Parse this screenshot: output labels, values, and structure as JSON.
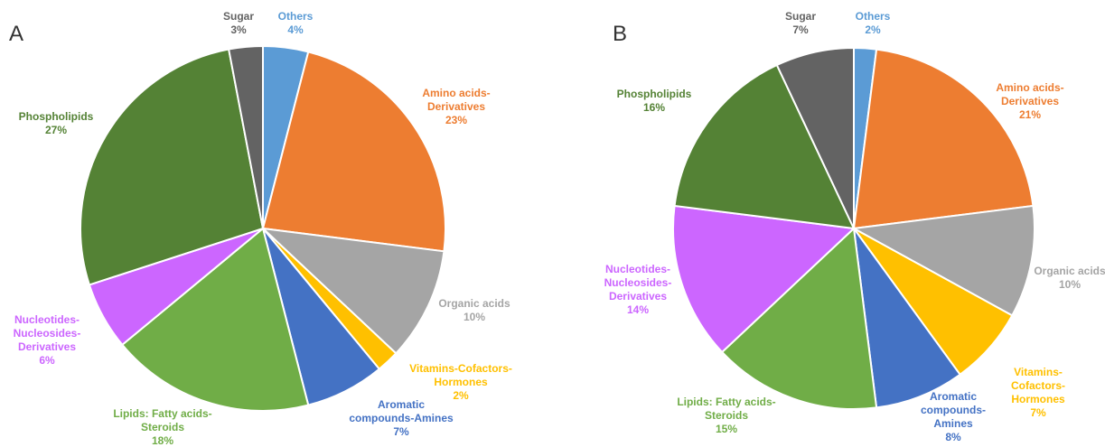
{
  "chart_data": [
    {
      "type": "pie",
      "panel_label": "A",
      "slices": [
        {
          "label": "Others",
          "value": 4,
          "text": "4%",
          "color": "#5b9bd5"
        },
        {
          "label": "Amino acids-Derivatives",
          "value": 23,
          "text": "23%",
          "color": "#ed7d31"
        },
        {
          "label": "Organic acids",
          "value": 10,
          "text": "10%",
          "color": "#a5a5a5"
        },
        {
          "label": "Vitamins-Cofactors-Hormones",
          "value": 2,
          "text": "2%",
          "color": "#ffc000"
        },
        {
          "label": "Aromatic compounds-Amines",
          "value": 7,
          "text": "7%",
          "color": "#4472c4"
        },
        {
          "label": "Lipids: Fatty acids-Steroids",
          "value": 18,
          "text": "18%",
          "color": "#70ad47"
        },
        {
          "label": "Nucleotides-Nucleosides-Derivatives",
          "value": 6,
          "text": "6%",
          "color": "#cc66ff"
        },
        {
          "label": "Phospholipids",
          "value": 27,
          "text": "27%",
          "color": "#548235"
        },
        {
          "label": "Sugar",
          "value": 3,
          "text": "3%",
          "color": "#636363"
        }
      ]
    },
    {
      "type": "pie",
      "panel_label": "B",
      "slices": [
        {
          "label": "Others",
          "value": 2,
          "text": "2%",
          "color": "#5b9bd5"
        },
        {
          "label": "Amino acids-Derivatives",
          "value": 21,
          "text": "21%",
          "color": "#ed7d31"
        },
        {
          "label": "Organic acids",
          "value": 10,
          "text": "10%",
          "color": "#a5a5a5"
        },
        {
          "label": "Vitamins-Cofactors-Hormones",
          "value": 7,
          "text": "7%",
          "color": "#ffc000"
        },
        {
          "label": "Aromatic compounds-Amines",
          "value": 8,
          "text": "8%",
          "color": "#4472c4"
        },
        {
          "label": "Lipids: Fatty acids-Steroids",
          "value": 15,
          "text": "15%",
          "color": "#70ad47"
        },
        {
          "label": "Nucleotides-Nucleosides-Derivatives",
          "value": 14,
          "text": "14%",
          "color": "#cc66ff"
        },
        {
          "label": "Phospholipids",
          "value": 16,
          "text": "16%",
          "color": "#548235"
        },
        {
          "label": "Sugar",
          "value": 7,
          "text": "7%",
          "color": "#636363"
        }
      ]
    }
  ]
}
